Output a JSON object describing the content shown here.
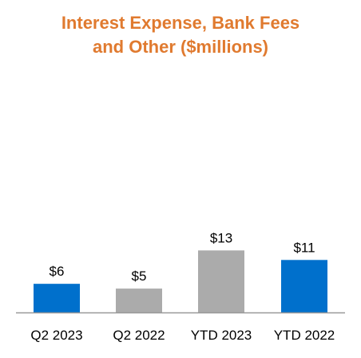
{
  "chart_data": {
    "type": "bar",
    "title_lines": [
      "Interest Expense, Bank Fees",
      "and Other ($millions)"
    ],
    "title": "Interest Expense, Bank Fees and Other ($millions)",
    "categories": [
      "Q2 2023",
      "Q2 2022",
      "YTD 2023",
      "YTD 2022"
    ],
    "values": [
      6,
      5,
      13,
      11
    ],
    "data_labels": [
      "$6",
      "$5",
      "$13",
      "$11"
    ],
    "bar_colors": [
      "#0070CC",
      "#ABABAB",
      "#ABABAB",
      "#0070CC"
    ],
    "ylim": [
      0,
      13.9
    ],
    "grid": false,
    "legend": "none"
  },
  "colors": {
    "title": "#E07A2F",
    "axis": "#999999",
    "text": "#000000"
  }
}
